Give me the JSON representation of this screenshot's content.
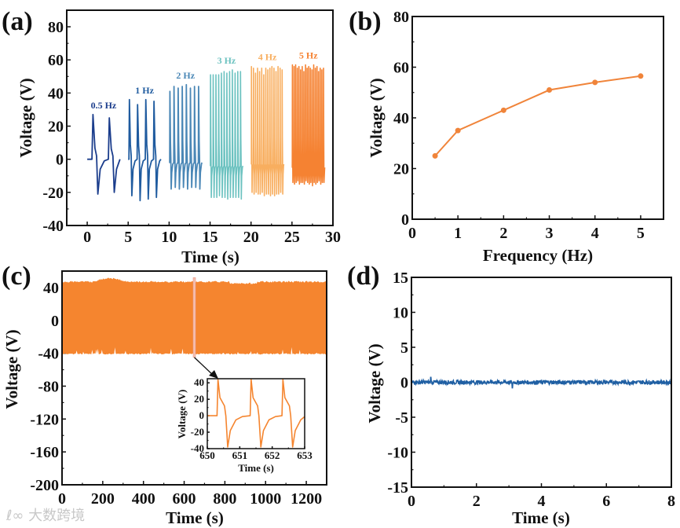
{
  "watermark": "大数跨境",
  "chart_data": [
    {
      "panel": "(a)",
      "type": "line",
      "xlabel": "Time (s)",
      "ylabel": "Voltage (V)",
      "xlim": [
        -2.5,
        30
      ],
      "ylim": [
        -40,
        90
      ],
      "xticks": [
        0,
        5,
        10,
        15,
        20,
        25,
        30
      ],
      "yticks": [
        -40,
        -20,
        0,
        20,
        40,
        60,
        80
      ],
      "series": [
        {
          "name": "0.5 Hz",
          "frequency": 0.5,
          "start": 0,
          "end": 4,
          "first_peak": 0.7,
          "positive_peaks": [
            27,
            25
          ],
          "negative_peaks": [
            -21,
            -20
          ],
          "baseline": 0,
          "color": "#1b3d8c"
        },
        {
          "name": "1 Hz",
          "frequency": 1,
          "start": 5,
          "end": 9,
          "first_peak": 5.15,
          "positive_peaks": [
            36,
            33,
            36,
            35
          ],
          "negative_peaks": [
            -22,
            -25,
            -24,
            -23
          ],
          "baseline": 0,
          "color": "#1f5b9f"
        },
        {
          "name": "2 Hz",
          "frequency": 2,
          "start": 10,
          "end": 14,
          "first_peak": 10.1,
          "positive_peaks": [
            41,
            44,
            43,
            44,
            45,
            43,
            44,
            44
          ],
          "negative_peaks": [
            -18,
            -17,
            -18,
            -17,
            -18,
            -17,
            -17,
            -18
          ],
          "baseline": -2,
          "color": "#4a87b6"
        },
        {
          "name": "3 Hz",
          "frequency": 3,
          "start": 15,
          "end": 19,
          "first_peak": 15.05,
          "positive_peaks": [
            51,
            51,
            51,
            51,
            52,
            53,
            52,
            53,
            54,
            52,
            53,
            53
          ],
          "negative_peaks": [
            -23,
            -23,
            -23,
            -22,
            -23,
            -23,
            -24,
            -23,
            -23,
            -23,
            -23,
            -24
          ],
          "baseline": -4,
          "color": "#6cc2c0"
        },
        {
          "name": "4 Hz",
          "frequency": 4,
          "start": 20,
          "end": 24,
          "first_peak": 20.05,
          "positive_peaks": [
            56,
            55,
            52,
            55,
            53,
            55,
            51,
            55,
            54,
            55,
            56,
            55,
            53,
            56,
            55,
            54
          ],
          "negative_peaks": [
            -20,
            -21,
            -20,
            -21,
            -21,
            -20,
            -22,
            -21,
            -21,
            -22,
            -21,
            -22,
            -21,
            -21,
            -20,
            -21
          ],
          "baseline": -3,
          "color": "#f8ae5f"
        },
        {
          "name": "5 Hz",
          "frequency": 5,
          "start": 25,
          "end": 29,
          "first_peak": 25.05,
          "positive_peaks": [
            57,
            56,
            57,
            55,
            56,
            54,
            56,
            53,
            57,
            55,
            56,
            55,
            54,
            57,
            55,
            56,
            53,
            55,
            54,
            55
          ],
          "negative_peaks": [
            -14,
            -15,
            -14,
            -13,
            -15,
            -14,
            -14,
            -15,
            -13,
            -14,
            -15,
            -14,
            -16,
            -14,
            -15,
            -14,
            -13,
            -15,
            -14,
            -14
          ],
          "baseline": -5,
          "color": "#f58232"
        }
      ]
    },
    {
      "panel": "(b)",
      "type": "line",
      "xlabel": "Frequency (Hz)",
      "ylabel": "Voltage (V)",
      "xlim": [
        0,
        5.5
      ],
      "ylim": [
        0,
        80
      ],
      "xticks": [
        0,
        1,
        2,
        3,
        4,
        5
      ],
      "yticks": [
        0,
        20,
        40,
        60,
        80
      ],
      "x": [
        0.5,
        1,
        2,
        3,
        4,
        5
      ],
      "y": [
        25,
        35,
        43,
        51,
        54,
        56.5
      ],
      "color": "#f0843a"
    },
    {
      "panel": "(c)",
      "type": "line",
      "xlabel": "Time (s)",
      "ylabel": "Voltage (V)",
      "xlim": [
        0,
        1300
      ],
      "ylim": [
        -200,
        60
      ],
      "xticks": [
        0,
        200,
        400,
        600,
        800,
        1000,
        1200
      ],
      "yticks": [
        -200,
        -160,
        -120,
        -80,
        -40,
        0,
        40
      ],
      "envelope": {
        "upper": 47,
        "lower": -40
      },
      "highlight_time": 650,
      "color": "#f5852f",
      "inset": {
        "xlabel": "Time (s)",
        "ylabel": "Voltage (V)",
        "xlim": [
          650,
          653
        ],
        "ylim": [
          -40,
          45
        ],
        "xticks": [
          650,
          651,
          652,
          653
        ],
        "yticks": [
          -40,
          -20,
          0,
          20,
          40
        ],
        "peak_times": [
          650.33,
          651.35,
          652.33
        ],
        "positive_peak": 44,
        "negative_peak": -38
      }
    },
    {
      "panel": "(d)",
      "type": "line",
      "xlabel": "Time (s)",
      "ylabel": "Voltage (V)",
      "xlim": [
        0,
        8
      ],
      "ylim": [
        -15,
        15
      ],
      "xticks": [
        0,
        2,
        4,
        6,
        8
      ],
      "yticks": [
        -15,
        -10,
        -5,
        0,
        5,
        10,
        15
      ],
      "noise_level": 0.3,
      "baseline": 0,
      "color": "#1f5fa3"
    }
  ]
}
